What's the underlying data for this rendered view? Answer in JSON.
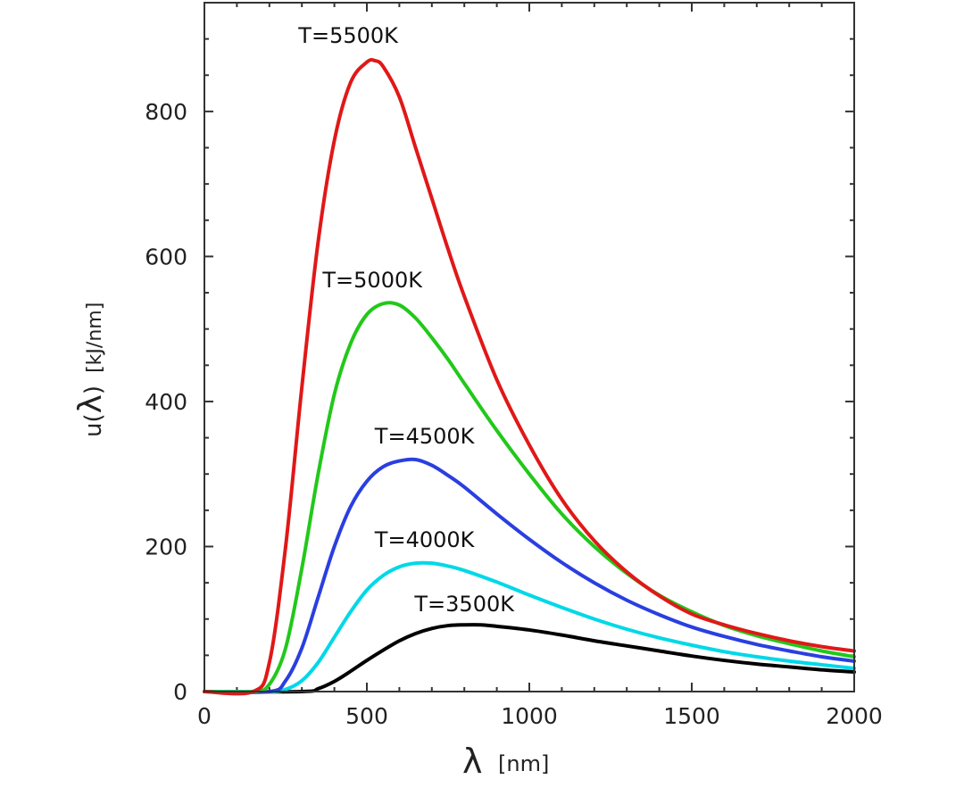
{
  "chart_data": {
    "type": "line",
    "title": "",
    "xlabel": {
      "symbol": "λ",
      "unit": "[nm]"
    },
    "ylabel": {
      "prefix": "u(",
      "symbol": "λ",
      "suffix": ")",
      "unit": "[kJ/nm]"
    },
    "xlim": [
      0,
      2000
    ],
    "ylim": [
      0,
      950
    ],
    "grid": false,
    "x_ticks": [
      0,
      500,
      1000,
      1500,
      2000
    ],
    "y_ticks": [
      0,
      200,
      400,
      600,
      800
    ],
    "x_tick_labels": [
      "0",
      "500",
      "1000",
      "1500",
      "2000"
    ],
    "y_tick_labels": [
      "0",
      "200",
      "400",
      "600",
      "800"
    ],
    "series": [
      {
        "name": "T=3500K",
        "label": "T=3500K",
        "color": "#000000",
        "x": [
          300,
          350,
          400,
          450,
          500,
          550,
          600,
          650,
          700,
          750,
          800,
          850,
          900,
          1000,
          1100,
          1200,
          1300,
          1400,
          1500,
          1600,
          1700,
          1800,
          1900,
          2000
        ],
        "y": [
          0,
          4,
          14,
          28,
          43,
          57,
          70,
          80,
          87,
          91,
          92,
          92,
          90,
          85,
          78,
          70,
          63,
          56,
          49,
          43,
          38,
          34,
          30,
          27
        ]
      },
      {
        "name": "T=4000K",
        "label": "T=4000K",
        "color": "#00d8e8",
        "x": [
          200,
          250,
          300,
          350,
          400,
          450,
          500,
          550,
          600,
          650,
          700,
          750,
          800,
          900,
          1000,
          1100,
          1200,
          1300,
          1400,
          1500,
          1600,
          1700,
          1800,
          1900,
          2000
        ],
        "y": [
          0,
          3,
          15,
          40,
          75,
          110,
          140,
          160,
          172,
          177,
          177,
          173,
          167,
          151,
          133,
          116,
          100,
          86,
          74,
          64,
          55,
          48,
          42,
          37,
          32
        ]
      },
      {
        "name": "T=4500K",
        "label": "T=4500K",
        "color": "#2a3fe0",
        "x": [
          200,
          250,
          300,
          350,
          400,
          450,
          500,
          550,
          600,
          650,
          700,
          750,
          800,
          900,
          1000,
          1100,
          1200,
          1300,
          1400,
          1500,
          1600,
          1700,
          1800,
          1900,
          2000
        ],
        "y": [
          0,
          15,
          60,
          130,
          200,
          255,
          290,
          310,
          318,
          320,
          312,
          298,
          282,
          245,
          210,
          178,
          150,
          126,
          106,
          89,
          76,
          65,
          56,
          48,
          42
        ]
      },
      {
        "name": "T=5000K",
        "label": "T=5000K",
        "color": "#22c81a",
        "x": [
          150,
          200,
          250,
          300,
          350,
          400,
          450,
          500,
          550,
          600,
          650,
          700,
          750,
          800,
          900,
          1000,
          1100,
          1200,
          1300,
          1400,
          1500,
          1600,
          1700,
          1800,
          1900,
          2000
        ],
        "y": [
          0,
          10,
          60,
          170,
          300,
          410,
          480,
          520,
          535,
          533,
          515,
          488,
          458,
          425,
          360,
          300,
          245,
          200,
          163,
          133,
          110,
          91,
          77,
          66,
          56,
          48
        ]
      },
      {
        "name": "T=5500K",
        "label": "T=5500K",
        "color": "#e01818",
        "x": [
          150,
          200,
          250,
          300,
          350,
          400,
          450,
          500,
          525,
          550,
          600,
          650,
          700,
          750,
          800,
          900,
          1000,
          1100,
          1200,
          1300,
          1400,
          1500,
          1600,
          1700,
          1800,
          1900,
          2000
        ],
        "y": [
          0,
          40,
          200,
          420,
          620,
          760,
          840,
          868,
          870,
          862,
          820,
          750,
          680,
          610,
          545,
          430,
          340,
          265,
          208,
          165,
          132,
          107,
          92,
          80,
          70,
          62,
          56
        ]
      }
    ]
  }
}
